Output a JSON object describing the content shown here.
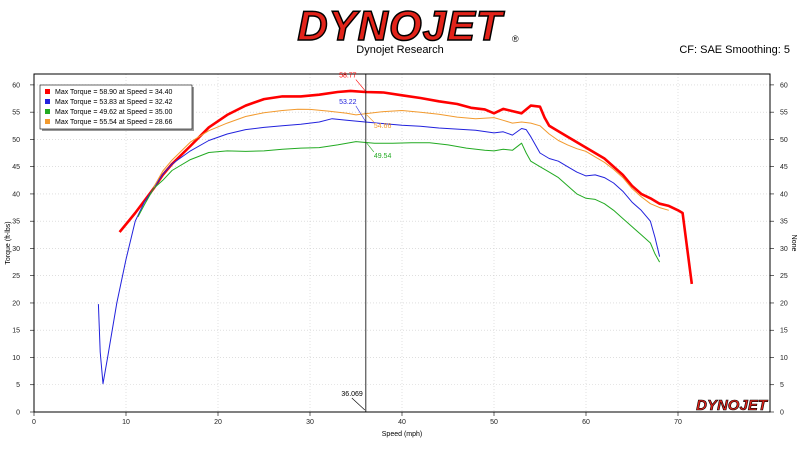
{
  "header": {
    "logo": "DYNOJET",
    "subtitle": "Dynojet Research",
    "cf_smoothing": "CF: SAE Smoothing: 5"
  },
  "colors": {
    "red": "#ff0000",
    "blue": "#2222dd",
    "green": "#22aa22",
    "orange": "#f29a2e",
    "grid": "#cccccc",
    "logo_red": "#e2231a"
  },
  "chart_data": {
    "type": "line",
    "xlabel": "Speed (mph)",
    "ylabel": "Torque (ft-lbs)",
    "y2label": "None",
    "xlim": [
      0,
      80
    ],
    "ylim": [
      0,
      62
    ],
    "xticks": [
      0,
      10,
      20,
      30,
      40,
      50,
      60,
      70
    ],
    "yticks": [
      0,
      5,
      10,
      15,
      20,
      25,
      30,
      35,
      40,
      45,
      50,
      55,
      60
    ],
    "grid": true,
    "legend_position": "top-left",
    "legend": [
      "Max Torque = 58.90 at Speed = 34.40",
      "Max Torque = 53.83 at Speed = 32.42",
      "Max Torque = 49.62 at Speed = 35.00",
      "Max Torque = 55.54 at Speed = 28.66"
    ],
    "cursor": {
      "x": 36.069,
      "label": "36.069"
    },
    "annotations": [
      {
        "text": "58.77",
        "series": 0,
        "y": 58.77
      },
      {
        "text": "53.22",
        "series": 1,
        "y": 53.22
      },
      {
        "text": "54.66",
        "series": 3,
        "y": 54.66
      },
      {
        "text": "49.54",
        "series": 2,
        "y": 49.54
      }
    ],
    "watermark": "DYNOJET",
    "series": [
      {
        "color_key": "red",
        "width": 2.6,
        "points": [
          [
            9.3,
            33
          ],
          [
            11,
            36.5
          ],
          [
            13,
            41
          ],
          [
            14,
            43.5
          ],
          [
            15,
            45.5
          ],
          [
            17,
            48.8
          ],
          [
            19,
            52.2
          ],
          [
            21,
            54.5
          ],
          [
            23,
            56.2
          ],
          [
            25,
            57.4
          ],
          [
            27,
            57.9
          ],
          [
            29,
            57.9
          ],
          [
            31,
            58.2
          ],
          [
            33,
            58.7
          ],
          [
            34.4,
            58.9
          ],
          [
            36,
            58.7
          ],
          [
            38,
            58.6
          ],
          [
            40,
            58.1
          ],
          [
            42,
            57.6
          ],
          [
            44,
            57
          ],
          [
            46,
            56.5
          ],
          [
            47.5,
            55.8
          ],
          [
            49,
            55.5
          ],
          [
            50,
            54.8
          ],
          [
            51,
            55.6
          ],
          [
            52,
            55.2
          ],
          [
            53,
            54.8
          ],
          [
            54,
            56.2
          ],
          [
            55,
            56
          ],
          [
            55.5,
            54
          ],
          [
            56,
            52.5
          ],
          [
            58,
            50.5
          ],
          [
            60,
            48.5
          ],
          [
            62,
            46.5
          ],
          [
            64,
            43.5
          ],
          [
            65,
            41.5
          ],
          [
            66,
            40
          ],
          [
            67,
            39.2
          ],
          [
            68,
            38.2
          ],
          [
            69,
            37.8
          ],
          [
            70,
            37
          ],
          [
            70.5,
            36.5
          ],
          [
            71,
            30
          ],
          [
            71.5,
            23.5
          ]
        ]
      },
      {
        "color_key": "blue",
        "width": 1,
        "points": [
          [
            7,
            19.8
          ],
          [
            7.2,
            11
          ],
          [
            7.5,
            5.2
          ],
          [
            8,
            10
          ],
          [
            9,
            20
          ],
          [
            10,
            28
          ],
          [
            11,
            35
          ],
          [
            12,
            38.5
          ],
          [
            13,
            41
          ],
          [
            14,
            43.6
          ],
          [
            15,
            45.5
          ],
          [
            17,
            47.9
          ],
          [
            19,
            49.8
          ],
          [
            21,
            51
          ],
          [
            23,
            51.8
          ],
          [
            25,
            52.2
          ],
          [
            27,
            52.5
          ],
          [
            29,
            52.8
          ],
          [
            31,
            53.2
          ],
          [
            32.4,
            53.8
          ],
          [
            34,
            53.5
          ],
          [
            36,
            53.2
          ],
          [
            38,
            52.9
          ],
          [
            40,
            52.6
          ],
          [
            42,
            52.4
          ],
          [
            44,
            52.1
          ],
          [
            46,
            51.9
          ],
          [
            48,
            51.7
          ],
          [
            50,
            51.2
          ],
          [
            51,
            51.4
          ],
          [
            52,
            50.8
          ],
          [
            53,
            52
          ],
          [
            53.5,
            51.8
          ],
          [
            54,
            50.5
          ],
          [
            55,
            47.5
          ],
          [
            56,
            46.5
          ],
          [
            57,
            46
          ],
          [
            58,
            45
          ],
          [
            59,
            44
          ],
          [
            60,
            43.3
          ],
          [
            61,
            43.5
          ],
          [
            62,
            43
          ],
          [
            63,
            42
          ],
          [
            64,
            40.5
          ],
          [
            65,
            38.5
          ],
          [
            66,
            37
          ],
          [
            67,
            35
          ],
          [
            67.5,
            32
          ],
          [
            68,
            28.5
          ]
        ]
      },
      {
        "color_key": "green",
        "width": 1,
        "points": [
          [
            11.3,
            35.8
          ],
          [
            12,
            38
          ],
          [
            13,
            41
          ],
          [
            14,
            42.5
          ],
          [
            15,
            44.3
          ],
          [
            17,
            46.3
          ],
          [
            19,
            47.6
          ],
          [
            21,
            47.9
          ],
          [
            23,
            47.8
          ],
          [
            25,
            47.9
          ],
          [
            27,
            48.2
          ],
          [
            29,
            48.4
          ],
          [
            31,
            48.5
          ],
          [
            33,
            49
          ],
          [
            35,
            49.6
          ],
          [
            37,
            49.3
          ],
          [
            39,
            49.3
          ],
          [
            41,
            49.4
          ],
          [
            43,
            49.4
          ],
          [
            45,
            49
          ],
          [
            47,
            48.4
          ],
          [
            49,
            48
          ],
          [
            50,
            47.9
          ],
          [
            51,
            48.2
          ],
          [
            52,
            48
          ],
          [
            53,
            49.3
          ],
          [
            53.5,
            47.5
          ],
          [
            54,
            46
          ],
          [
            55,
            45
          ],
          [
            56,
            44
          ],
          [
            57,
            43
          ],
          [
            58,
            41.5
          ],
          [
            59,
            40
          ],
          [
            60,
            39.2
          ],
          [
            61,
            39
          ],
          [
            62,
            38.2
          ],
          [
            63,
            37
          ],
          [
            64,
            35.5
          ],
          [
            65,
            34
          ],
          [
            66,
            32.5
          ],
          [
            67,
            31
          ],
          [
            67.5,
            29
          ],
          [
            68,
            27.5
          ]
        ]
      },
      {
        "color_key": "orange",
        "width": 1,
        "points": [
          [
            13,
            41.2
          ],
          [
            14,
            44.2
          ],
          [
            15,
            46.2
          ],
          [
            17,
            49.5
          ],
          [
            19,
            51.6
          ],
          [
            21,
            53
          ],
          [
            23,
            54.2
          ],
          [
            25,
            54.9
          ],
          [
            27,
            55.3
          ],
          [
            28.66,
            55.54
          ],
          [
            30,
            55.5
          ],
          [
            32,
            55.2
          ],
          [
            34,
            54.8
          ],
          [
            35,
            54.5
          ],
          [
            36,
            54.7
          ],
          [
            38,
            55.1
          ],
          [
            40,
            55.3
          ],
          [
            42,
            55
          ],
          [
            44,
            54.6
          ],
          [
            46,
            54.1
          ],
          [
            48,
            53.8
          ],
          [
            50,
            54
          ],
          [
            51,
            53.5
          ],
          [
            52,
            53
          ],
          [
            53,
            53.2
          ],
          [
            54,
            53
          ],
          [
            55,
            52.5
          ],
          [
            56,
            51
          ],
          [
            57,
            49.8
          ],
          [
            58,
            49
          ],
          [
            59,
            48.3
          ],
          [
            60,
            47.8
          ],
          [
            61,
            46.8
          ],
          [
            62,
            45.8
          ],
          [
            63,
            44.5
          ],
          [
            64,
            43
          ],
          [
            65,
            41
          ],
          [
            66,
            39.5
          ],
          [
            67,
            38.2
          ],
          [
            68,
            37.5
          ],
          [
            69,
            37
          ]
        ]
      }
    ]
  }
}
